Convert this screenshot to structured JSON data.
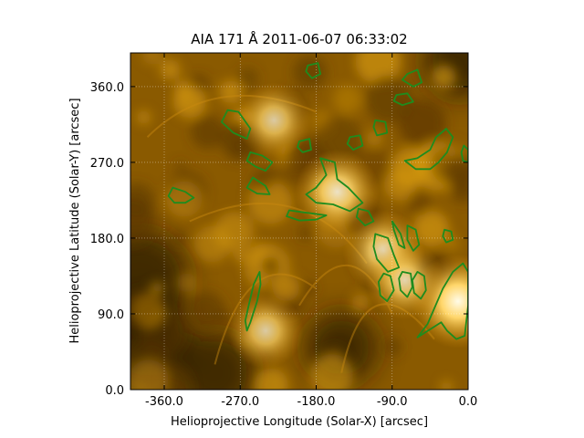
{
  "chart_data": {
    "type": "heatmap",
    "title": "AIA 171 Å 2011-06-07 06:33:02",
    "xlabel": "Helioprojective Longitude (Solar-X) [arcsec]",
    "ylabel": "Helioprojective Latitude (Solar-Y) [arcsec]",
    "xlim": [
      -400,
      0
    ],
    "ylim": [
      0,
      400
    ],
    "xticks": [
      -360,
      -270,
      -180,
      -90,
      0
    ],
    "yticks": [
      0,
      90,
      180,
      270,
      360
    ],
    "xtick_labels": [
      "-360.0",
      "-270.0",
      "-180.0",
      "-90.0",
      "0.0"
    ],
    "ytick_labels": [
      "0.0",
      "90.0",
      "180.0",
      "270.0",
      "360.0"
    ],
    "grid": true,
    "colormap": "sdoaia171",
    "contour_color": "#1e8c1e",
    "bright_regions": [
      {
        "x": -12,
        "y": 105,
        "intensity": 1.0
      },
      {
        "x": -155,
        "y": 235,
        "intensity": 0.85
      },
      {
        "x": -100,
        "y": 165,
        "intensity": 0.8
      },
      {
        "x": -75,
        "y": 130,
        "intensity": 0.75
      },
      {
        "x": -230,
        "y": 320,
        "intensity": 0.7
      },
      {
        "x": -240,
        "y": 70,
        "intensity": 0.7
      }
    ],
    "contours": [
      {
        "points": [
          [
            -6,
            150
          ],
          [
            -18,
            140
          ],
          [
            -30,
            120
          ],
          [
            -48,
            78
          ],
          [
            -60,
            62
          ],
          [
            -32,
            80
          ],
          [
            -25,
            70
          ],
          [
            -14,
            60
          ],
          [
            -4,
            64
          ],
          [
            0,
            100
          ],
          [
            0,
            140
          ]
        ]
      },
      {
        "points": [
          [
            -247,
            140
          ],
          [
            -254,
            125
          ],
          [
            -260,
            100
          ],
          [
            -264,
            82
          ],
          [
            -262,
            70
          ],
          [
            -258,
            80
          ],
          [
            -250,
            105
          ],
          [
            -246,
            125
          ]
        ]
      },
      {
        "points": [
          [
            -175,
            275
          ],
          [
            -158,
            270
          ],
          [
            -155,
            250
          ],
          [
            -142,
            240
          ],
          [
            -125,
            222
          ],
          [
            -140,
            212
          ],
          [
            -160,
            220
          ],
          [
            -180,
            222
          ],
          [
            -192,
            232
          ],
          [
            -180,
            240
          ],
          [
            -168,
            255
          ]
        ]
      },
      {
        "points": [
          [
            -110,
            185
          ],
          [
            -95,
            180
          ],
          [
            -88,
            160
          ],
          [
            -82,
            145
          ],
          [
            -95,
            140
          ],
          [
            -108,
            155
          ],
          [
            -112,
            170
          ]
        ]
      },
      {
        "points": [
          [
            -78,
            140
          ],
          [
            -68,
            138
          ],
          [
            -66,
            122
          ],
          [
            -72,
            110
          ],
          [
            -80,
            118
          ],
          [
            -82,
            132
          ]
        ]
      },
      {
        "points": [
          [
            -100,
            138
          ],
          [
            -92,
            135
          ],
          [
            -88,
            118
          ],
          [
            -96,
            105
          ],
          [
            -104,
            112
          ],
          [
            -106,
            128
          ]
        ]
      },
      {
        "points": [
          [
            -60,
            140
          ],
          [
            -52,
            135
          ],
          [
            -50,
            118
          ],
          [
            -56,
            108
          ],
          [
            -64,
            115
          ],
          [
            -66,
            130
          ]
        ]
      },
      {
        "points": [
          [
            -285,
            332
          ],
          [
            -272,
            330
          ],
          [
            -258,
            310
          ],
          [
            -262,
            298
          ],
          [
            -278,
            305
          ],
          [
            -292,
            318
          ]
        ]
      },
      {
        "points": [
          [
            -258,
            282
          ],
          [
            -244,
            278
          ],
          [
            -232,
            270
          ],
          [
            -240,
            260
          ],
          [
            -252,
            265
          ],
          [
            -262,
            272
          ]
        ]
      },
      {
        "points": [
          [
            -255,
            252
          ],
          [
            -262,
            240
          ],
          [
            -250,
            233
          ],
          [
            -235,
            232
          ],
          [
            -240,
            242
          ]
        ]
      },
      {
        "points": [
          [
            -350,
            240
          ],
          [
            -335,
            235
          ],
          [
            -325,
            228
          ],
          [
            -335,
            222
          ],
          [
            -348,
            222
          ],
          [
            -355,
            230
          ]
        ]
      },
      {
        "points": [
          [
            -212,
            213
          ],
          [
            -190,
            210
          ],
          [
            -168,
            207
          ],
          [
            -180,
            202
          ],
          [
            -200,
            201
          ],
          [
            -215,
            206
          ]
        ]
      },
      {
        "points": [
          [
            -90,
            200
          ],
          [
            -80,
            185
          ],
          [
            -75,
            168
          ],
          [
            -82,
            172
          ],
          [
            -88,
            190
          ]
        ]
      },
      {
        "points": [
          [
            -72,
            195
          ],
          [
            -62,
            190
          ],
          [
            -58,
            172
          ],
          [
            -65,
            165
          ],
          [
            -72,
            178
          ]
        ]
      },
      {
        "points": [
          [
            -72,
            375
          ],
          [
            -60,
            380
          ],
          [
            -55,
            365
          ],
          [
            -65,
            360
          ],
          [
            -78,
            368
          ]
        ]
      },
      {
        "points": [
          [
            -190,
            385
          ],
          [
            -178,
            388
          ],
          [
            -175,
            375
          ],
          [
            -185,
            370
          ],
          [
            -192,
            378
          ]
        ]
      },
      {
        "points": [
          [
            -35,
            270
          ],
          [
            -25,
            282
          ],
          [
            -18,
            300
          ],
          [
            -26,
            310
          ],
          [
            -38,
            300
          ],
          [
            -45,
            285
          ],
          [
            -60,
            275
          ],
          [
            -75,
            272
          ],
          [
            -62,
            262
          ],
          [
            -45,
            262
          ]
        ]
      },
      {
        "points": [
          [
            -85,
            350
          ],
          [
            -72,
            352
          ],
          [
            -65,
            342
          ],
          [
            -78,
            338
          ],
          [
            -88,
            343
          ]
        ]
      },
      {
        "points": [
          [
            -140,
            300
          ],
          [
            -128,
            302
          ],
          [
            -125,
            290
          ],
          [
            -136,
            285
          ],
          [
            -143,
            292
          ]
        ]
      },
      {
        "points": [
          [
            -110,
            320
          ],
          [
            -98,
            318
          ],
          [
            -96,
            305
          ],
          [
            -108,
            302
          ],
          [
            -112,
            312
          ]
        ]
      },
      {
        "points": [
          [
            -200,
            295
          ],
          [
            -188,
            298
          ],
          [
            -186,
            285
          ],
          [
            -196,
            282
          ],
          [
            -202,
            288
          ]
        ]
      },
      {
        "points": [
          [
            -130,
            215
          ],
          [
            -118,
            212
          ],
          [
            -112,
            200
          ],
          [
            -122,
            195
          ],
          [
            -132,
            205
          ]
        ]
      },
      {
        "points": [
          [
            -28,
            190
          ],
          [
            -20,
            188
          ],
          [
            -18,
            178
          ],
          [
            -26,
            175
          ],
          [
            -30,
            182
          ]
        ]
      },
      {
        "points": [
          [
            -5,
            290
          ],
          [
            0,
            285
          ],
          [
            0,
            270
          ],
          [
            -6,
            272
          ],
          [
            -8,
            282
          ]
        ]
      }
    ]
  }
}
